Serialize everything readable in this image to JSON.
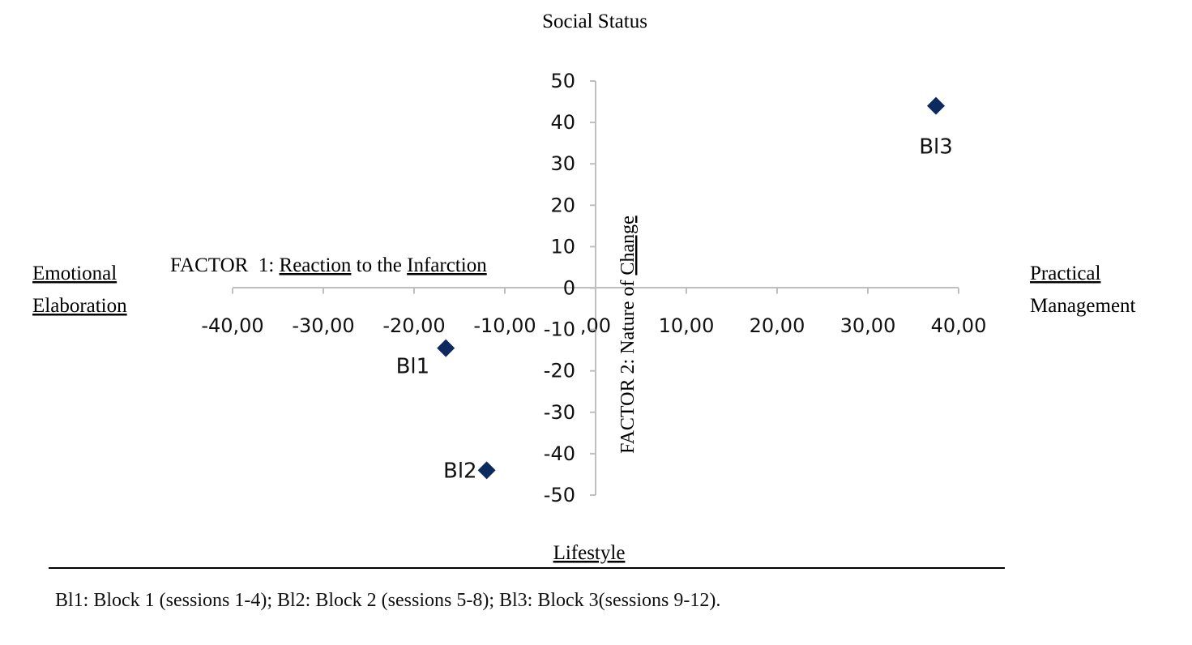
{
  "chart_data": {
    "type": "scatter",
    "title": "",
    "xlabel": "FACTOR  1: Reaction to the Infarction",
    "ylabel": "FACTOR 2: Nature of Change",
    "xlim": [
      -40,
      40
    ],
    "ylim": [
      -50,
      50
    ],
    "x_ticks": [
      -40,
      -30,
      -20,
      -10,
      0,
      10,
      20,
      30,
      40
    ],
    "x_tick_labels": [
      "-40,00",
      "-30,00",
      "-20,00",
      "-10,00",
      ",00",
      "10,00",
      "20,00",
      "30,00",
      "40,00"
    ],
    "y_ticks": [
      -50,
      -40,
      -30,
      -20,
      -10,
      0,
      10,
      20,
      30,
      40,
      50
    ],
    "y_tick_labels": [
      "-50",
      "-40",
      "-30",
      "-20",
      "-10",
      "0",
      "10",
      "20",
      "30",
      "40",
      "50"
    ],
    "grid": false,
    "marker_color": "#0c2a5e",
    "points": [
      {
        "label": "Bl1",
        "x": -16.5,
        "y": -14.5
      },
      {
        "label": "Bl2",
        "x": -12.0,
        "y": -44.0
      },
      {
        "label": "Bl3",
        "x": 37.5,
        "y": 44.0
      }
    ],
    "pole_labels": {
      "top": "Social Status",
      "bottom": "Lifestyle",
      "left_line1": "Emotional",
      "left_line2": "Elaboration",
      "right_line1": "Practical",
      "right_line2": "Management"
    }
  },
  "footnote": "Bl1: Block 1 (sessions 1-4); Bl2: Block 2 (sessions 5-8); Bl3: Block 3(sessions 9-12)."
}
